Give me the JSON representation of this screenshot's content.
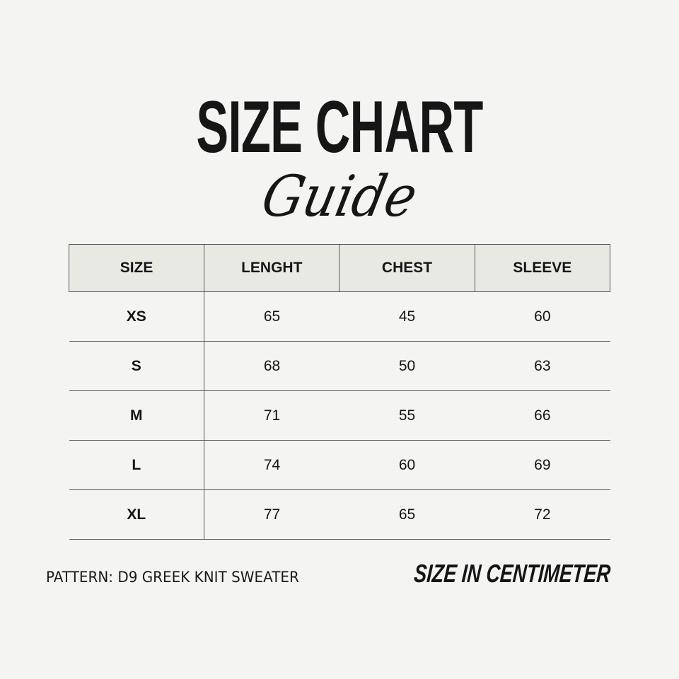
{
  "title": {
    "main": "SIZE CHART",
    "script": "Guide"
  },
  "table": {
    "headers": [
      "SIZE",
      "LENGHT",
      "CHEST",
      "SLEEVE"
    ],
    "rows": [
      [
        "XS",
        "65",
        "45",
        "60"
      ],
      [
        "S",
        "68",
        "50",
        "63"
      ],
      [
        "M",
        "71",
        "55",
        "66"
      ],
      [
        "L",
        "74",
        "60",
        "69"
      ],
      [
        "XL",
        "77",
        "65",
        "72"
      ]
    ]
  },
  "footer": {
    "pattern": "PATTERN: D9 GREEK KNIT SWEATER",
    "unit": "SIZE IN CENTIMETER"
  },
  "colors": {
    "background": "#f4f4f2",
    "header_fill": "#e9e9e4",
    "text": "#151515"
  }
}
